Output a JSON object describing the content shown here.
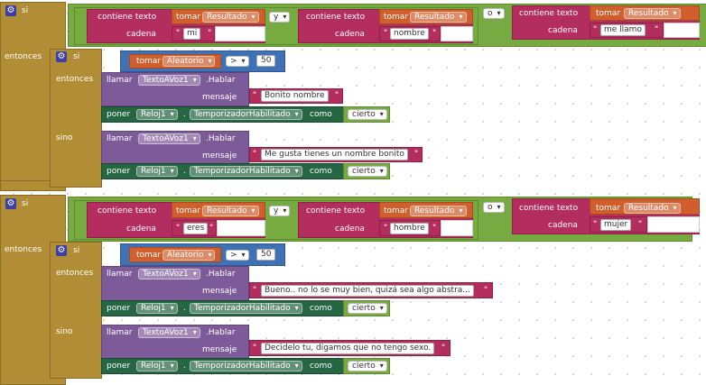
{
  "keywords": {
    "si": "si",
    "entonces": "entonces",
    "sino": "sino",
    "contiene": "contiene texto",
    "cadena": "cadena",
    "tomar": "tomar",
    "y": "y",
    "o": "o",
    "llamar": "llamar",
    "hablar": ".Hablar",
    "mensaje": "mensaje",
    "poner": "poner",
    "como": "como",
    "dot": ".",
    "gt": ">",
    "quote": "\""
  },
  "dropdowns": {
    "resultado": "Resultado",
    "aleatorio": "Aleatorio",
    "tts": "TextoAVoz1",
    "reloj": "Reloj1",
    "prop": "TemporizadorHabilitado",
    "cierto": "cierto"
  },
  "block1": {
    "strings": [
      "mi",
      "nombre",
      "me llamo"
    ],
    "random_threshold": "50",
    "then_message": "Bonito nombre",
    "else_message": "Me gusta tienes un nombre bonito"
  },
  "block2": {
    "strings": [
      "eres",
      "hombre",
      "mujer"
    ],
    "random_threshold": "50",
    "then_message": "Bueno.. no lo se muy bien, quizá sea algo abstra...",
    "else_message": "Decidelo tu, digamos que no tengo sexo."
  },
  "colors": {
    "control": "#b18e35",
    "logic": "#77ab41",
    "text": "#b32d5e",
    "variable": "#d05f2d",
    "math": "#3f71b5",
    "component": "#7d5b99",
    "setter": "#266643"
  }
}
